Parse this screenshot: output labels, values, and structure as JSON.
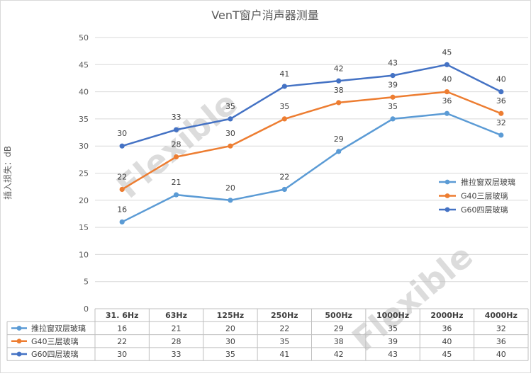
{
  "chart_data": {
    "type": "line",
    "title": "VenT窗户消声器测量",
    "ylabel": "插入损失：dB",
    "xlabel": "",
    "categories": [
      "31. 6Hz",
      "63Hz",
      "125Hz",
      "250Hz",
      "500Hz",
      "1000Hz",
      "2000Hz",
      "4000Hz"
    ],
    "ylim": [
      0,
      50
    ],
    "yticks": [
      0,
      5,
      10,
      15,
      20,
      25,
      30,
      35,
      40,
      45,
      50
    ],
    "grid": true,
    "legend_position": "right",
    "data_table": true,
    "series": [
      {
        "name": "推拉窗双层玻璃",
        "color": "#5b9bd5",
        "values": [
          16,
          21,
          20,
          22,
          29,
          35,
          36,
          32
        ]
      },
      {
        "name": "G40三层玻璃",
        "color": "#ed7d31",
        "values": [
          22,
          28,
          30,
          35,
          38,
          39,
          40,
          36
        ]
      },
      {
        "name": "G60四层玻璃",
        "color": "#4472c4",
        "values": [
          30,
          33,
          35,
          41,
          42,
          43,
          45,
          40
        ]
      }
    ],
    "watermark": "Flexible"
  }
}
